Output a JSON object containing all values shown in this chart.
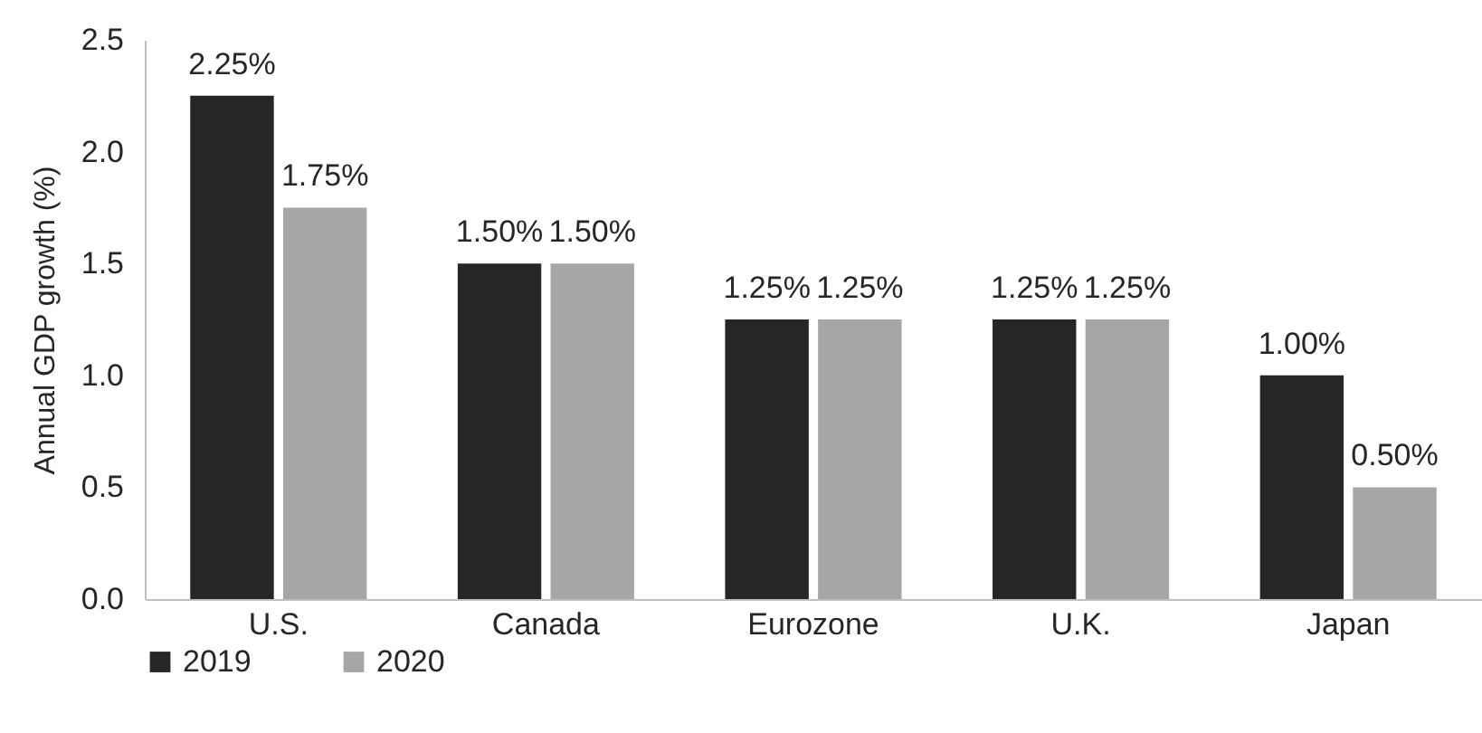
{
  "chart_data": {
    "type": "bar",
    "ylabel": "Annual GDP growth (%)",
    "categories": [
      "U.S.",
      "Canada",
      "Eurozone",
      "U.K.",
      "Japan"
    ],
    "series": [
      {
        "name": "2019",
        "color": "#262626",
        "values": [
          2.25,
          1.5,
          1.25,
          1.25,
          1.0
        ],
        "value_labels": [
          "2.25%",
          "1.50%",
          "1.25%",
          "1.25%",
          "1.00%"
        ]
      },
      {
        "name": "2020",
        "color": "#a6a6a6",
        "values": [
          1.75,
          1.5,
          1.25,
          1.25,
          0.5
        ],
        "value_labels": [
          "1.75%",
          "1.50%",
          "1.25%",
          "1.25%",
          "0.50%"
        ]
      }
    ],
    "ylim": [
      0,
      2.5
    ],
    "yticks": [
      {
        "value": 0,
        "label": "0.0"
      },
      0.5,
      {
        "value": 1,
        "label": "1.0"
      },
      1.5,
      {
        "value": 2,
        "label": "2.0"
      },
      2.5
    ],
    "grid": false,
    "legend": "bottom"
  }
}
